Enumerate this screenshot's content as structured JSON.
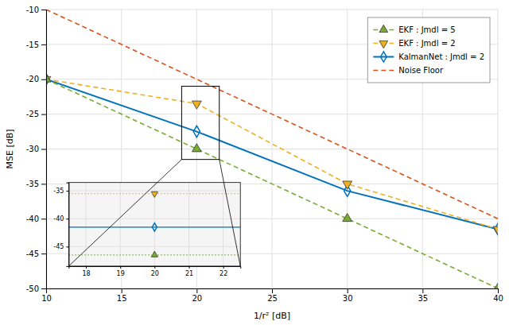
{
  "chart_data": [
    {
      "type": "line",
      "x_label": "1/r² [dB]",
      "y_label": "MSE [dB]",
      "xlim": [
        10,
        40
      ],
      "ylim": [
        -50,
        -10
      ],
      "xticks": [
        10,
        15,
        20,
        25,
        30,
        35,
        40
      ],
      "yticks": [
        -50,
        -45,
        -40,
        -35,
        -30,
        -25,
        -20,
        -15,
        -10
      ],
      "grid": true,
      "legend": "upper right",
      "series": [
        {
          "name": "EKF : Jmdl = 5",
          "color": "#77ac30",
          "line_style": "dashed",
          "marker": "triangle-up",
          "x": [
            10,
            20,
            30,
            40
          ],
          "values": [
            -20,
            -30,
            -40,
            -50
          ]
        },
        {
          "name": "EKF : Jmdl = 2",
          "color": "#edb120",
          "line_style": "dashed",
          "marker": "triangle-down",
          "x": [
            10,
            20,
            30,
            40
          ],
          "values": [
            -20,
            -23.5,
            -35,
            -41.5
          ]
        },
        {
          "name": "KalmanNet : Jmdl = 2",
          "color": "#0072bd",
          "line_style": "solid",
          "marker": "diamond-open",
          "x": [
            10,
            20,
            30,
            40
          ],
          "values": [
            -20,
            -27.5,
            -36,
            -41.5
          ]
        },
        {
          "name": "Noise Floor",
          "color": "#d95319",
          "line_style": "dashed",
          "x": [
            10,
            40
          ],
          "values": [
            -10,
            -40
          ]
        }
      ],
      "zoom_box": {
        "x0": 19.0,
        "y0": -31.5,
        "width": 2.5,
        "height": 10.5
      }
    },
    {
      "type": "line",
      "xlim": [
        17.5,
        22.5
      ],
      "ylim": [
        -48.5,
        -33.5
      ],
      "xticks": [
        18,
        19,
        20,
        21,
        22
      ],
      "yticks": [
        -45,
        -40,
        -35
      ],
      "grid": true,
      "series": [
        {
          "type": "line",
          "color": "#77ac30",
          "line_style": "dotted",
          "x": [
            17.5,
            22.5
          ],
          "values": [
            -46.5,
            -46.5
          ]
        },
        {
          "type": "scatter",
          "color": "#77ac30",
          "marker": "triangle-up",
          "x": [
            20
          ],
          "values": [
            -46.5
          ]
        },
        {
          "type": "line",
          "color": "#edb120",
          "line_style": "dotted",
          "x": [
            17.5,
            22.5
          ],
          "values": [
            -35.5,
            -35.5
          ]
        },
        {
          "type": "scatter",
          "color": "#edb120",
          "marker": "triangle-down",
          "x": [
            20
          ],
          "values": [
            -35.5
          ]
        },
        {
          "type": "line",
          "color": "#0072bd",
          "line_style": "solid",
          "x": [
            17.5,
            22.5
          ],
          "values": [
            -41.5,
            -41.5
          ]
        },
        {
          "type": "scatter",
          "color": "#0072bd",
          "marker": "diamond-open",
          "x": [
            20
          ],
          "values": [
            -41.5
          ]
        }
      ]
    }
  ]
}
